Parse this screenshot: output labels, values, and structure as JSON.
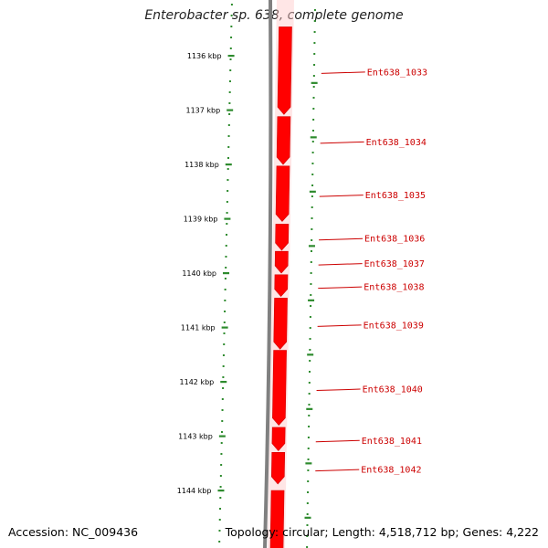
{
  "title": "Enterobacter sp. 638, complete genome",
  "footer": {
    "accession": "Accession: NC_009436",
    "summary": "Topology: circular; Length: 4,518,712 bp; Genes: 4,222"
  },
  "colors": {
    "gene_fill": "#ff0000",
    "gene_label": "#cc0000",
    "backbone": "#808080",
    "tick": "#2e8b2e",
    "glow": "#ffc8c8"
  },
  "scale": {
    "ticks": [
      "1136 kbp",
      "1137 kbp",
      "1138 kbp",
      "1139 kbp",
      "1140 kbp",
      "1141 kbp",
      "1142 kbp",
      "1143 kbp",
      "1144 kbp"
    ]
  },
  "genes": [
    {
      "label": "Ent638_1033",
      "start_kbp": 1135.47,
      "end_kbp": 1137.08
    },
    {
      "label": "Ent638_1034",
      "start_kbp": 1137.12,
      "end_kbp": 1138.0
    },
    {
      "label": "Ent638_1035",
      "start_kbp": 1138.03,
      "end_kbp": 1139.05
    },
    {
      "label": "Ent638_1036",
      "start_kbp": 1139.1,
      "end_kbp": 1139.58
    },
    {
      "label": "Ent638_1037",
      "start_kbp": 1139.6,
      "end_kbp": 1140.0
    },
    {
      "label": "Ent638_1038",
      "start_kbp": 1140.03,
      "end_kbp": 1140.43
    },
    {
      "label": "Ent638_1039",
      "start_kbp": 1140.46,
      "end_kbp": 1141.4
    },
    {
      "label": "Ent638_1040",
      "start_kbp": 1141.42,
      "end_kbp": 1142.8
    },
    {
      "label": "Ent638_1041",
      "start_kbp": 1142.84,
      "end_kbp": 1143.27
    },
    {
      "label": "Ent638_1042",
      "start_kbp": 1143.3,
      "end_kbp": 1143.88
    },
    {
      "label": "",
      "start_kbp": 1144.0,
      "end_kbp": 1145.2
    }
  ]
}
